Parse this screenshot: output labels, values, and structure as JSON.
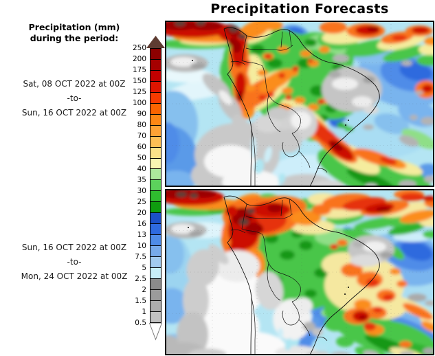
{
  "title": "Precipitation Forecasts",
  "legend": {
    "heading_line1": "Precipitation (mm)",
    "heading_line2": "during the period:",
    "levels": [
      "250",
      "200",
      "175",
      "150",
      "125",
      "100",
      "90",
      "80",
      "70",
      "60",
      "50",
      "40",
      "35",
      "30",
      "25",
      "20",
      "16",
      "13",
      "10",
      "7.5",
      "5",
      "2.5",
      "2",
      "1.5",
      "1",
      "0.5"
    ],
    "segment_colors": [
      "#8c0000",
      "#a50000",
      "#c10000",
      "#de1500",
      "#f63b00",
      "#fb6400",
      "#fd8714",
      "#fda235",
      "#fdbf55",
      "#fbe289",
      "#f9f6b2",
      "#ace89c",
      "#5cd25c",
      "#2fbc2f",
      "#0f9c0f",
      "#1b50c8",
      "#2e6ae0",
      "#4f8ce8",
      "#77aaea",
      "#a2caee",
      "#c8eef8",
      "#8a8a8a",
      "#9b9b9b",
      "#adadad",
      "#c1c1c1"
    ],
    "arrow_top_color": "#5e3c32",
    "arrow_bottom_color": "#ffffff"
  },
  "panels": [
    {
      "period_start": "Sat, 08 OCT 2022 at 00Z",
      "separator": "-to-",
      "period_end": "Sun, 16 OCT 2022 at 00Z"
    },
    {
      "period_start": "Sun, 16 OCT 2022 at 00Z",
      "separator": "-to-",
      "period_end": "Mon, 24 OCT 2022 at 00Z"
    }
  ]
}
